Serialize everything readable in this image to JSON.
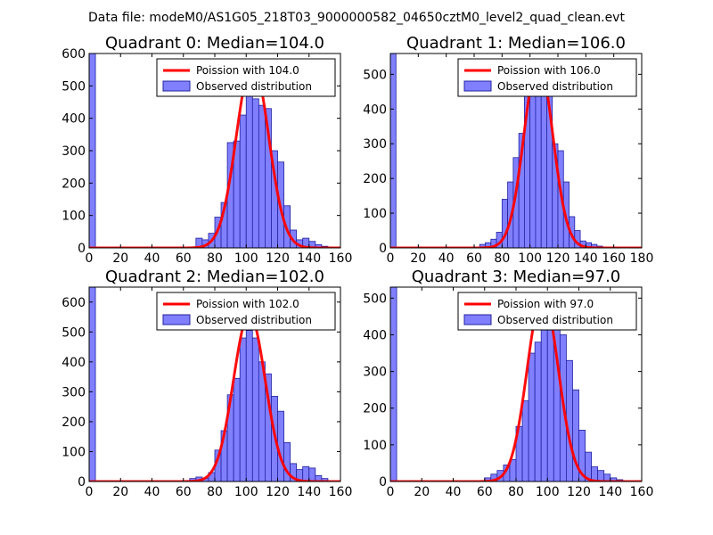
{
  "figure": {
    "suptitle": "Data file: modeM0/AS1G05_218T03_9000000582_04650cztM0_level2_quad_clean.evt"
  },
  "colors": {
    "bar_fill": "#8080ff",
    "bar_edge": "#2020a0",
    "poisson_line": "#ff0000",
    "legend_edge": "#000000"
  },
  "chart_data": [
    {
      "type": "bar",
      "title": "Quadrant 0: Median=104.0",
      "xlim": [
        0,
        160
      ],
      "ylim": [
        0,
        600
      ],
      "xticks": [
        0,
        20,
        40,
        60,
        80,
        100,
        120,
        140,
        160
      ],
      "yticks": [
        0,
        100,
        200,
        300,
        400,
        500,
        600
      ],
      "bin_width": 4,
      "bars": [
        {
          "x": 0,
          "value": 600
        },
        {
          "x": 68,
          "value": 30
        },
        {
          "x": 72,
          "value": 25
        },
        {
          "x": 76,
          "value": 45
        },
        {
          "x": 80,
          "value": 95
        },
        {
          "x": 84,
          "value": 140
        },
        {
          "x": 88,
          "value": 325
        },
        {
          "x": 92,
          "value": 330
        },
        {
          "x": 96,
          "value": 410
        },
        {
          "x": 100,
          "value": 480
        },
        {
          "x": 104,
          "value": 460
        },
        {
          "x": 108,
          "value": 440
        },
        {
          "x": 112,
          "value": 430
        },
        {
          "x": 116,
          "value": 300
        },
        {
          "x": 120,
          "value": 265
        },
        {
          "x": 124,
          "value": 130
        },
        {
          "x": 128,
          "value": 55
        },
        {
          "x": 132,
          "value": 25
        },
        {
          "x": 136,
          "value": 30
        },
        {
          "x": 140,
          "value": 20
        },
        {
          "x": 144,
          "value": 10
        },
        {
          "x": 148,
          "value": 5
        }
      ],
      "poisson": {
        "mean": 104.0,
        "peak": 575
      },
      "legend": {
        "line_label": "Poission with 104.0",
        "bar_label": "Observed distribution",
        "loc": "upper-right"
      }
    },
    {
      "type": "bar",
      "title": "Quadrant 1: Median=106.0",
      "xlim": [
        0,
        180
      ],
      "ylim": [
        0,
        560
      ],
      "xticks": [
        0,
        20,
        40,
        60,
        80,
        100,
        120,
        140,
        160,
        180
      ],
      "yticks": [
        0,
        100,
        200,
        300,
        400,
        500
      ],
      "bin_width": 4,
      "bars": [
        {
          "x": 0,
          "value": 560
        },
        {
          "x": 64,
          "value": 10
        },
        {
          "x": 68,
          "value": 15
        },
        {
          "x": 72,
          "value": 25
        },
        {
          "x": 76,
          "value": 45
        },
        {
          "x": 80,
          "value": 140
        },
        {
          "x": 84,
          "value": 190
        },
        {
          "x": 88,
          "value": 260
        },
        {
          "x": 92,
          "value": 330
        },
        {
          "x": 96,
          "value": 480
        },
        {
          "x": 100,
          "value": 460
        },
        {
          "x": 104,
          "value": 450
        },
        {
          "x": 108,
          "value": 470
        },
        {
          "x": 112,
          "value": 460
        },
        {
          "x": 116,
          "value": 300
        },
        {
          "x": 120,
          "value": 280
        },
        {
          "x": 124,
          "value": 190
        },
        {
          "x": 128,
          "value": 90
        },
        {
          "x": 132,
          "value": 50
        },
        {
          "x": 136,
          "value": 20
        },
        {
          "x": 140,
          "value": 15
        },
        {
          "x": 144,
          "value": 10
        },
        {
          "x": 148,
          "value": 5
        }
      ],
      "poisson": {
        "mean": 106.0,
        "peak": 540
      },
      "legend": {
        "line_label": "Poission with 106.0",
        "bar_label": "Observed distribution",
        "loc": "upper-right"
      }
    },
    {
      "type": "bar",
      "title": "Quadrant 2: Median=102.0",
      "xlim": [
        0,
        160
      ],
      "ylim": [
        0,
        650
      ],
      "xticks": [
        0,
        20,
        40,
        60,
        80,
        100,
        120,
        140,
        160
      ],
      "yticks": [
        0,
        100,
        200,
        300,
        400,
        500,
        600
      ],
      "bin_width": 4,
      "bars": [
        {
          "x": 0,
          "value": 650
        },
        {
          "x": 64,
          "value": 10
        },
        {
          "x": 68,
          "value": 15
        },
        {
          "x": 72,
          "value": 10
        },
        {
          "x": 76,
          "value": 30
        },
        {
          "x": 80,
          "value": 105
        },
        {
          "x": 84,
          "value": 170
        },
        {
          "x": 88,
          "value": 290
        },
        {
          "x": 92,
          "value": 345
        },
        {
          "x": 96,
          "value": 480
        },
        {
          "x": 100,
          "value": 505
        },
        {
          "x": 104,
          "value": 480
        },
        {
          "x": 108,
          "value": 400
        },
        {
          "x": 112,
          "value": 360
        },
        {
          "x": 116,
          "value": 285
        },
        {
          "x": 120,
          "value": 235
        },
        {
          "x": 124,
          "value": 130
        },
        {
          "x": 128,
          "value": 60
        },
        {
          "x": 132,
          "value": 40
        },
        {
          "x": 136,
          "value": 50
        },
        {
          "x": 140,
          "value": 45
        },
        {
          "x": 144,
          "value": 20
        },
        {
          "x": 148,
          "value": 10
        }
      ],
      "poisson": {
        "mean": 102.0,
        "peak": 560
      },
      "legend": {
        "line_label": "Poission with 102.0",
        "bar_label": "Observed distribution",
        "loc": "upper-right"
      }
    },
    {
      "type": "bar",
      "title": "Quadrant 3: Median=97.0",
      "xlim": [
        0,
        160
      ],
      "ylim": [
        0,
        530
      ],
      "xticks": [
        0,
        20,
        40,
        60,
        80,
        100,
        120,
        140,
        160
      ],
      "yticks": [
        0,
        100,
        200,
        300,
        400,
        500
      ],
      "bin_width": 4,
      "bars": [
        {
          "x": 0,
          "value": 530
        },
        {
          "x": 60,
          "value": 10
        },
        {
          "x": 64,
          "value": 20
        },
        {
          "x": 68,
          "value": 30
        },
        {
          "x": 72,
          "value": 45
        },
        {
          "x": 76,
          "value": 60
        },
        {
          "x": 80,
          "value": 150
        },
        {
          "x": 84,
          "value": 220
        },
        {
          "x": 88,
          "value": 350
        },
        {
          "x": 92,
          "value": 380
        },
        {
          "x": 96,
          "value": 480
        },
        {
          "x": 100,
          "value": 490
        },
        {
          "x": 104,
          "value": 500
        },
        {
          "x": 108,
          "value": 400
        },
        {
          "x": 112,
          "value": 330
        },
        {
          "x": 116,
          "value": 250
        },
        {
          "x": 120,
          "value": 140
        },
        {
          "x": 124,
          "value": 80
        },
        {
          "x": 128,
          "value": 40
        },
        {
          "x": 132,
          "value": 30
        },
        {
          "x": 136,
          "value": 20
        },
        {
          "x": 140,
          "value": 10
        },
        {
          "x": 144,
          "value": 5
        }
      ],
      "poisson": {
        "mean": 97.0,
        "peak": 510
      },
      "legend": {
        "line_label": "Poission with 97.0",
        "bar_label": "Observed distribution",
        "loc": "upper-right"
      }
    }
  ]
}
